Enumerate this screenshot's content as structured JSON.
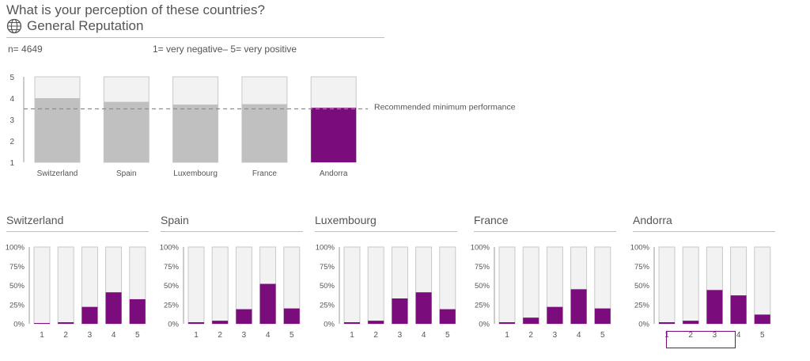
{
  "title": "What is your perception of these countries?",
  "subtitle": "General Reputation",
  "sample": "n= 4649",
  "scale_note": "1= very negative– 5= very positive",
  "colors": {
    "highlight": "#7b0c7b",
    "muted": "#c0c0c0",
    "background_bar": "#f2f2f2",
    "axis_text": "#555555"
  },
  "chart_data": [
    {
      "type": "bar",
      "title": "",
      "categories": [
        "Switzerland",
        "Spain",
        "Luxembourg",
        "France",
        "Andorra"
      ],
      "values": [
        4.0,
        3.83,
        3.7,
        3.72,
        3.55
      ],
      "highlight_category": "Andorra",
      "ylim": [
        1,
        5
      ],
      "yticks": [
        "1",
        "2",
        "3",
        "4",
        "5"
      ],
      "reference_line": {
        "value": 3.5,
        "label": "Recommended minimum  performance"
      },
      "xlabel": "",
      "ylabel": ""
    },
    {
      "type": "bar",
      "title": "Switzerland",
      "categories": [
        "1",
        "2",
        "3",
        "4",
        "5"
      ],
      "values": [
        1,
        2,
        22,
        41,
        32
      ],
      "ylim": [
        0,
        100
      ],
      "yticks": [
        "0%",
        "25%",
        "50%",
        "75%",
        "100%"
      ]
    },
    {
      "type": "bar",
      "title": "Spain",
      "categories": [
        "1",
        "2",
        "3",
        "4",
        "5"
      ],
      "values": [
        2,
        4,
        19,
        52,
        20
      ],
      "ylim": [
        0,
        100
      ],
      "yticks": [
        "0%",
        "25%",
        "50%",
        "75%",
        "100%"
      ]
    },
    {
      "type": "bar",
      "title": "Luxembourg",
      "categories": [
        "1",
        "2",
        "3",
        "4",
        "5"
      ],
      "values": [
        2,
        4,
        33,
        41,
        19
      ],
      "ylim": [
        0,
        100
      ],
      "yticks": [
        "0%",
        "25%",
        "50%",
        "75%",
        "100%"
      ]
    },
    {
      "type": "bar",
      "title": "France",
      "categories": [
        "1",
        "2",
        "3",
        "4",
        "5"
      ],
      "values": [
        2,
        8,
        22,
        45,
        20
      ],
      "ylim": [
        0,
        100
      ],
      "yticks": [
        "0%",
        "25%",
        "50%",
        "75%",
        "100%"
      ]
    },
    {
      "type": "bar",
      "title": "Andorra",
      "categories": [
        "1",
        "2",
        "3",
        "4",
        "5"
      ],
      "values": [
        2,
        4,
        44,
        37,
        12
      ],
      "ylim": [
        0,
        100
      ],
      "yticks": [
        "0%",
        "25%",
        "50%",
        "75%",
        "100%"
      ]
    }
  ]
}
